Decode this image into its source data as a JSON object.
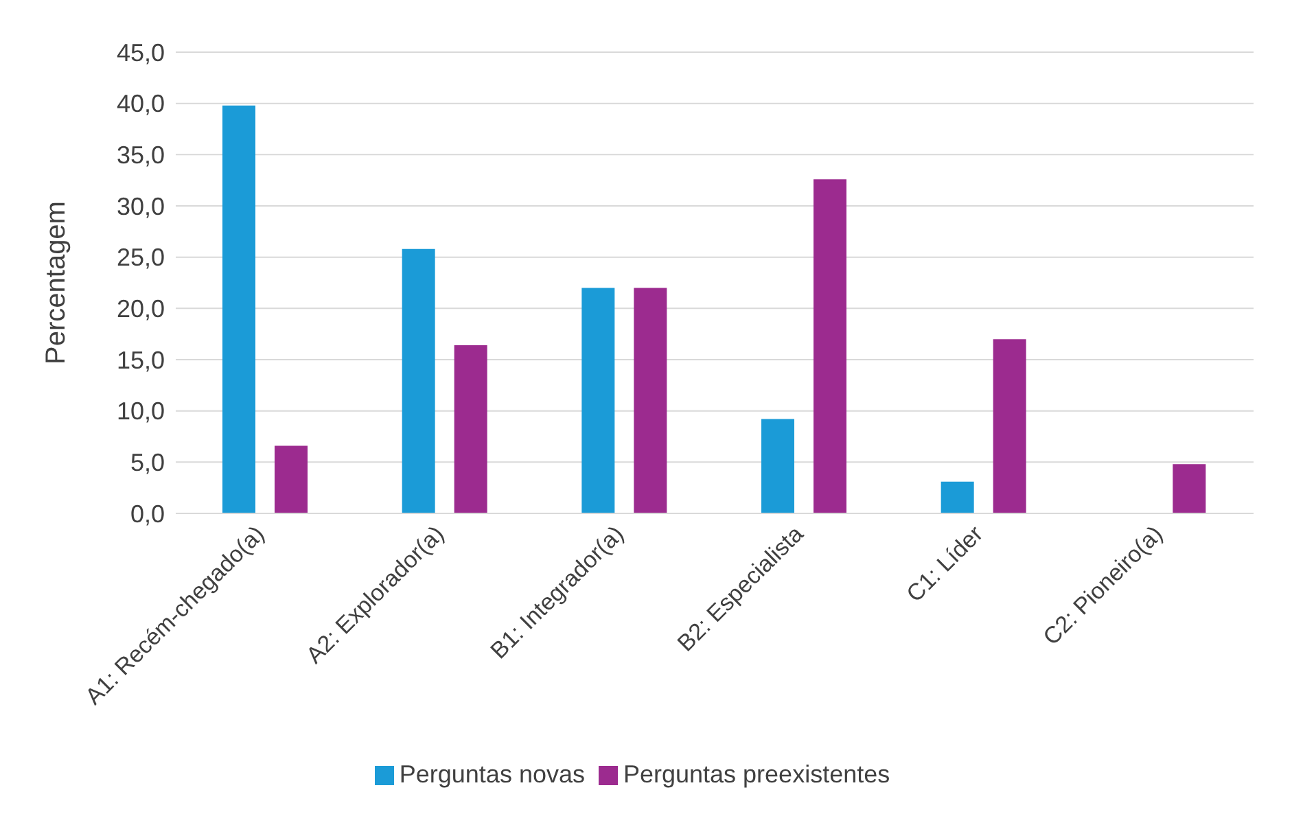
{
  "chart_data": {
    "type": "bar",
    "ylabel": "Percentagem",
    "categories": [
      "A1: Recém-chegado(a)",
      "A2: Explorador(a)",
      "B1: Integrador(a)",
      "B2: Especialista",
      "C1: Líder",
      "C2: Pioneiro(a)"
    ],
    "series": [
      {
        "name": "Perguntas novas",
        "color": "#1b9bd7",
        "values": [
          39.8,
          25.8,
          22.0,
          9.2,
          3.1,
          0.0
        ]
      },
      {
        "name": "Perguntas preexistentes",
        "color": "#9c2b8f",
        "values": [
          6.6,
          16.4,
          22.0,
          32.6,
          17.0,
          4.8
        ]
      }
    ],
    "ylim": [
      0,
      45
    ],
    "yticks": [
      {
        "value": 0,
        "label": "0,0"
      },
      {
        "value": 5,
        "label": "5,0"
      },
      {
        "value": 10,
        "label": "10,0"
      },
      {
        "value": 15,
        "label": "15,0"
      },
      {
        "value": 20,
        "label": "20,0"
      },
      {
        "value": 25,
        "label": "25,0"
      },
      {
        "value": 30,
        "label": "30,0"
      },
      {
        "value": 35,
        "label": "35,0"
      },
      {
        "value": 40,
        "label": "40,0"
      },
      {
        "value": 45,
        "label": "45,0"
      }
    ],
    "grid": "y",
    "legend": "bottom"
  }
}
